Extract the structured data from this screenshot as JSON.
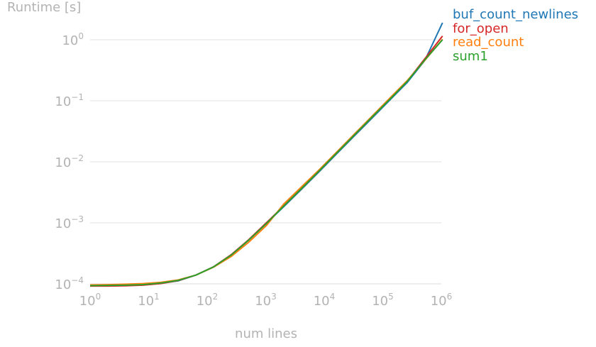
{
  "chart_data": {
    "type": "line",
    "title": "",
    "ylabel": "Runtime [s]",
    "xlabel": "num lines",
    "xscale": "log",
    "yscale": "log",
    "xlim": [
      1,
      1000000
    ],
    "ylim": [
      0.0001,
      1
    ],
    "grid": "horizontal",
    "legend_position": "right, outside plot area",
    "x_ticks": [
      {
        "base": "10",
        "exp": "0"
      },
      {
        "base": "10",
        "exp": "1"
      },
      {
        "base": "10",
        "exp": "2"
      },
      {
        "base": "10",
        "exp": "3"
      },
      {
        "base": "10",
        "exp": "4"
      },
      {
        "base": "10",
        "exp": "5"
      },
      {
        "base": "10",
        "exp": "6"
      }
    ],
    "y_ticks": [
      {
        "base": "10",
        "exp": "0"
      },
      {
        "base": "10",
        "exp": "−1"
      },
      {
        "base": "10",
        "exp": "−2"
      },
      {
        "base": "10",
        "exp": "−3"
      },
      {
        "base": "10",
        "exp": "−4"
      }
    ],
    "x": [
      1,
      2,
      4,
      8,
      16,
      32,
      64,
      128,
      256,
      512,
      1024,
      2048,
      4096,
      8192,
      16384,
      32768,
      65536,
      131072,
      262144,
      524288,
      1048576
    ],
    "series": [
      {
        "name": "buf_count_newlines",
        "color": "#1f77b4",
        "values": [
          9.35e-05,
          9.35e-05,
          9.45e-05,
          9.65e-05,
          0.0001015,
          0.000112,
          0.000139,
          0.000189,
          0.000295,
          0.00052,
          0.00098,
          0.00185,
          0.00355,
          0.0069,
          0.0136,
          0.0266,
          0.052,
          0.102,
          0.2,
          0.46,
          1.9
        ]
      },
      {
        "name": "for_open",
        "color": "#d62728",
        "values": [
          9.2e-05,
          9.2e-05,
          9.3e-05,
          9.5e-05,
          0.000101,
          0.000113,
          0.000139,
          0.00019,
          0.0003,
          0.00053,
          0.001,
          0.0019,
          0.00365,
          0.0071,
          0.014,
          0.0275,
          0.054,
          0.106,
          0.21,
          0.49,
          1.15
        ]
      },
      {
        "name": "read_count",
        "color": "#ff7f0e",
        "values": [
          9.6e-05,
          9.7e-05,
          9.85e-05,
          0.000101,
          0.000106,
          0.000116,
          0.000139,
          0.000187,
          0.00028,
          0.00048,
          0.0009,
          0.00205,
          0.0039,
          0.0074,
          0.0145,
          0.0285,
          0.056,
          0.11,
          0.215,
          0.46,
          1.02
        ]
      },
      {
        "name": "sum1",
        "color": "#2ca02c",
        "values": [
          9.35e-05,
          9.4e-05,
          9.5e-05,
          9.7e-05,
          0.000103,
          0.000114,
          0.000139,
          0.000189,
          0.000295,
          0.00052,
          0.00097,
          0.0019,
          0.00365,
          0.0071,
          0.014,
          0.0275,
          0.054,
          0.105,
          0.208,
          0.47,
          1.0
        ]
      }
    ],
    "gridline_color": "#e6e6e6",
    "text_color": "#b3b3b3"
  }
}
